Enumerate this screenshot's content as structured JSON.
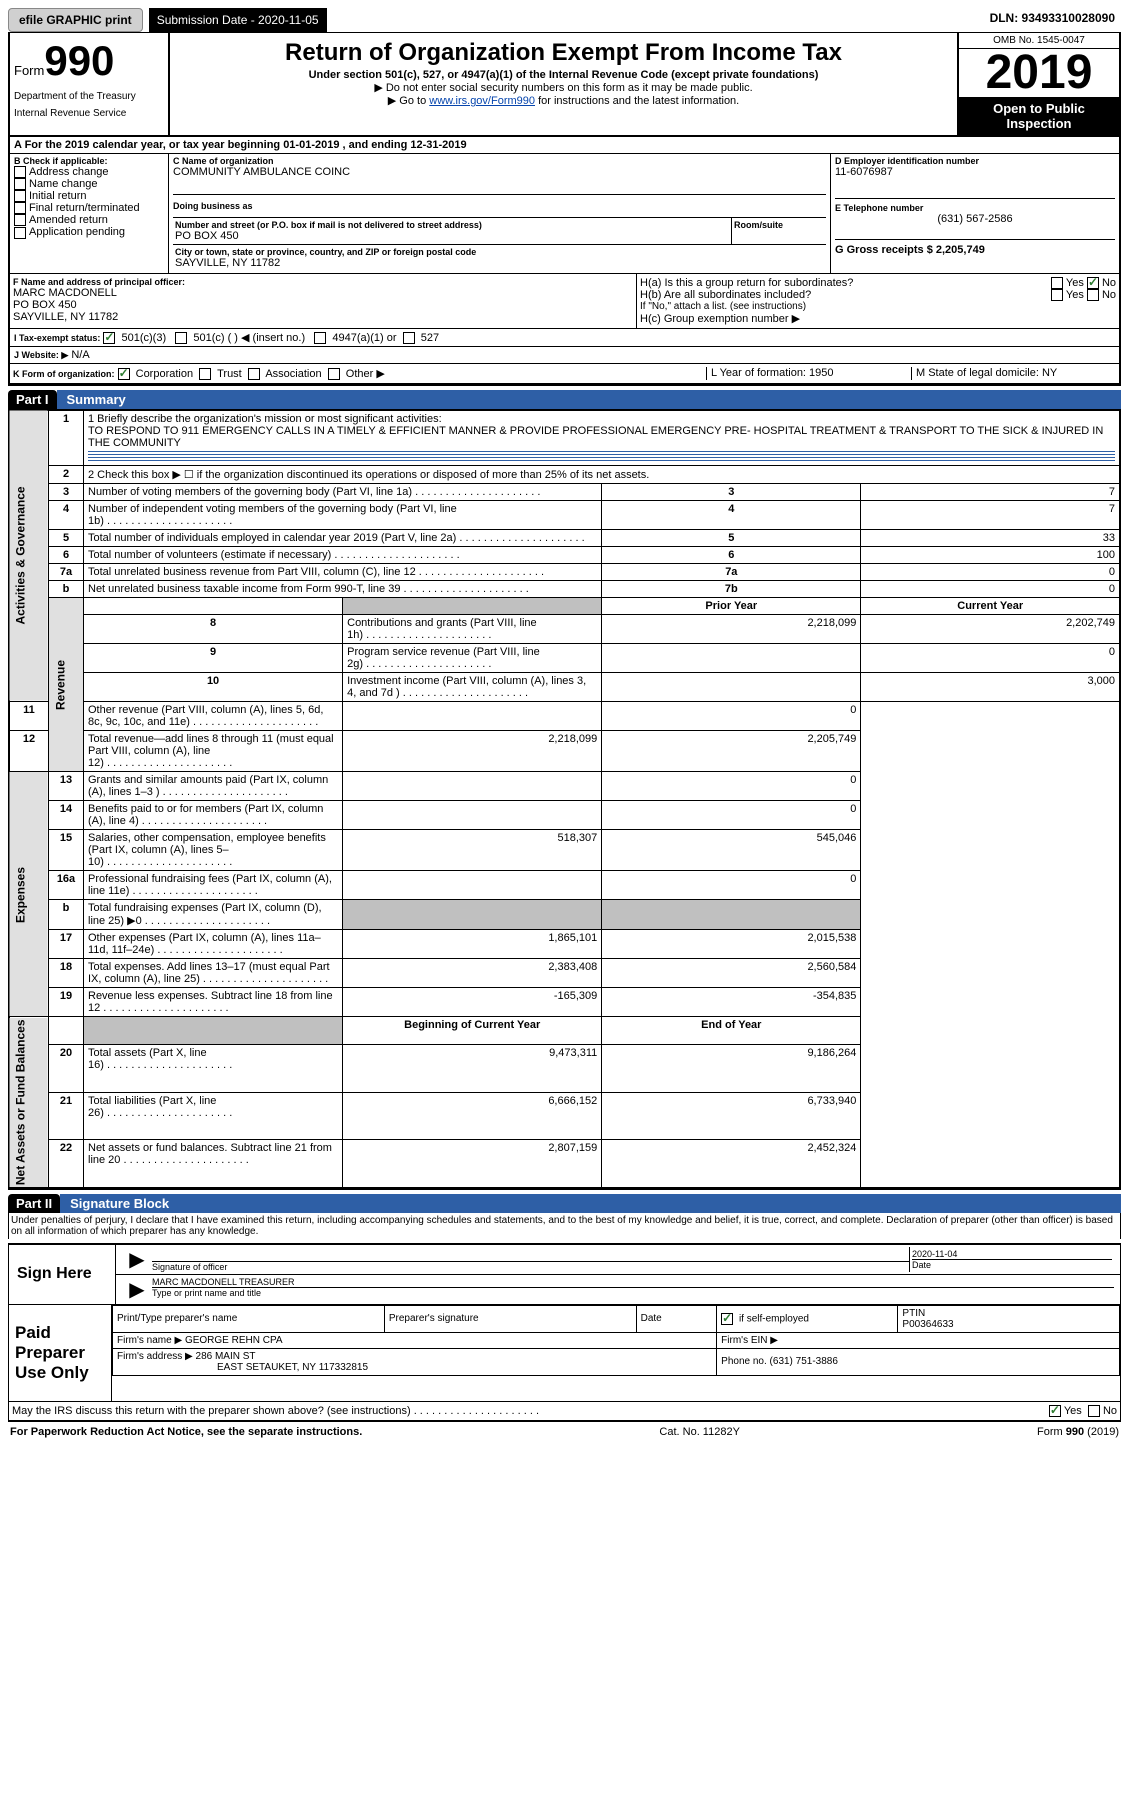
{
  "topbar": {
    "efile_btn": "efile GRAPHIC print",
    "sub_label": "Submission Date - 2020-11-05",
    "dln": "DLN: 93493310028090"
  },
  "header": {
    "form_prefix": "Form",
    "form_num": "990",
    "title": "Return of Organization Exempt From Income Tax",
    "subtitle": "Under section 501(c), 527, or 4947(a)(1) of the Internal Revenue Code (except private foundations)",
    "line1": "▶ Do not enter social security numbers on this form as it may be made public.",
    "line2_prefix": "▶ Go to ",
    "line2_link": "www.irs.gov/Form990",
    "line2_suffix": " for instructions and the latest information.",
    "dept1": "Department of the Treasury",
    "dept2": "Internal Revenue Service",
    "omb": "OMB No. 1545-0047",
    "year": "2019",
    "open_pub1": "Open to Public",
    "open_pub2": "Inspection"
  },
  "line_a": "A For the 2019 calendar year, or tax year beginning 01-01-2019    , and ending 12-31-2019",
  "box_b": {
    "heading": "B Check if applicable:",
    "items": [
      "Address change",
      "Name change",
      "Initial return",
      "Final return/terminated",
      "Amended return",
      "Application pending"
    ]
  },
  "box_c": {
    "name_lbl": "C Name of organization",
    "name_val": "COMMUNITY AMBULANCE COINC",
    "dba_lbl": "Doing business as",
    "dba_val": "",
    "addr_lbl": "Number and street (or P.O. box if mail is not delivered to street address)",
    "room_lbl": "Room/suite",
    "addr_val": "PO BOX 450",
    "city_lbl": "City or town, state or province, country, and ZIP or foreign postal code",
    "city_val": "SAYVILLE, NY  11782"
  },
  "box_d": {
    "ein_lbl": "D Employer identification number",
    "ein_val": "11-6076987",
    "phone_lbl": "E Telephone number",
    "phone_val": "(631) 567-2586",
    "gross_lbl": "G Gross receipts $ 2,205,749"
  },
  "box_f": {
    "lbl": "F  Name and address of principal officer:",
    "name": "MARC MACDONELL",
    "addr": "PO BOX 450",
    "city": "SAYVILLE, NY  11782"
  },
  "box_h": {
    "ha": "H(a)  Is this a group return for subordinates?",
    "hb": "H(b)  Are all subordinates included?",
    "hb_note": "If \"No,\" attach a list. (see instructions)",
    "hc": "H(c)  Group exemption number ▶"
  },
  "tax_exempt": {
    "lbl": "I  Tax-exempt status:",
    "opt1": "501(c)(3)",
    "opt2": "501(c) (   ) ◀ (insert no.)",
    "opt3": "4947(a)(1) or",
    "opt4": "527"
  },
  "website": {
    "lbl": "J  Website: ▶",
    "val": "N/A"
  },
  "box_k": {
    "lbl": "K Form of organization:",
    "opts": [
      "Corporation",
      "Trust",
      "Association",
      "Other ▶"
    ],
    "l_lbl": "L Year of formation: 1950",
    "m_lbl": "M State of legal domicile: NY"
  },
  "part1": {
    "tag": "Part I",
    "title": "Summary",
    "side_labels": {
      "ag": "Activities & Governance",
      "rev": "Revenue",
      "exp": "Expenses",
      "net": "Net Assets or Fund Balances"
    },
    "mission_lbl": "1  Briefly describe the organization's mission or most significant activities:",
    "mission_txt": "TO RESPOND TO 911 EMERGENCY CALLS IN A TIMELY & EFFICIENT MANNER & PROVIDE PROFESSIONAL EMERGENCY PRE- HOSPITAL TREATMENT & TRANSPORT TO THE SICK & INJURED IN THE COMMUNITY",
    "line2": "2  Check this box ▶ ☐  if the organization discontinued its operations or disposed of more than 25% of its net assets.",
    "prior_hdr": "Prior Year",
    "curr_hdr": "Current Year",
    "begin_hdr": "Beginning of Current Year",
    "end_hdr": "End of Year",
    "rows_ag": [
      {
        "n": "3",
        "txt": "Number of voting members of the governing body (Part VI, line 1a)",
        "box": "3",
        "val": "7"
      },
      {
        "n": "4",
        "txt": "Number of independent voting members of the governing body (Part VI, line 1b)",
        "box": "4",
        "val": "7"
      },
      {
        "n": "5",
        "txt": "Total number of individuals employed in calendar year 2019 (Part V, line 2a)",
        "box": "5",
        "val": "33"
      },
      {
        "n": "6",
        "txt": "Total number of volunteers (estimate if necessary)",
        "box": "6",
        "val": "100"
      },
      {
        "n": "7a",
        "txt": "Total unrelated business revenue from Part VIII, column (C), line 12",
        "box": "7a",
        "val": "0"
      },
      {
        "n": "b",
        "txt": "Net unrelated business taxable income from Form 990-T, line 39",
        "box": "7b",
        "val": "0"
      }
    ],
    "rows_rev": [
      {
        "n": "8",
        "txt": "Contributions and grants (Part VIII, line 1h)",
        "py": "2,218,099",
        "cy": "2,202,749"
      },
      {
        "n": "9",
        "txt": "Program service revenue (Part VIII, line 2g)",
        "py": "",
        "cy": "0"
      },
      {
        "n": "10",
        "txt": "Investment income (Part VIII, column (A), lines 3, 4, and 7d )",
        "py": "",
        "cy": "3,000"
      },
      {
        "n": "11",
        "txt": "Other revenue (Part VIII, column (A), lines 5, 6d, 8c, 9c, 10c, and 11e)",
        "py": "",
        "cy": "0"
      },
      {
        "n": "12",
        "txt": "Total revenue—add lines 8 through 11 (must equal Part VIII, column (A), line 12)",
        "py": "2,218,099",
        "cy": "2,205,749"
      }
    ],
    "rows_exp": [
      {
        "n": "13",
        "txt": "Grants and similar amounts paid (Part IX, column (A), lines 1–3 )",
        "py": "",
        "cy": "0"
      },
      {
        "n": "14",
        "txt": "Benefits paid to or for members (Part IX, column (A), line 4)",
        "py": "",
        "cy": "0"
      },
      {
        "n": "15",
        "txt": "Salaries, other compensation, employee benefits (Part IX, column (A), lines 5–10)",
        "py": "518,307",
        "cy": "545,046"
      },
      {
        "n": "16a",
        "txt": "Professional fundraising fees (Part IX, column (A), line 11e)",
        "py": "",
        "cy": "0"
      },
      {
        "n": "b",
        "txt": "Total fundraising expenses (Part IX, column (D), line 25) ▶0",
        "py": "SHADE",
        "cy": "SHADE"
      },
      {
        "n": "17",
        "txt": "Other expenses (Part IX, column (A), lines 11a–11d, 11f–24e)",
        "py": "1,865,101",
        "cy": "2,015,538"
      },
      {
        "n": "18",
        "txt": "Total expenses. Add lines 13–17 (must equal Part IX, column (A), line 25)",
        "py": "2,383,408",
        "cy": "2,560,584"
      },
      {
        "n": "19",
        "txt": "Revenue less expenses. Subtract line 18 from line 12",
        "py": "-165,309",
        "cy": "-354,835"
      }
    ],
    "rows_net": [
      {
        "n": "20",
        "txt": "Total assets (Part X, line 16)",
        "py": "9,473,311",
        "cy": "9,186,264"
      },
      {
        "n": "21",
        "txt": "Total liabilities (Part X, line 26)",
        "py": "6,666,152",
        "cy": "6,733,940"
      },
      {
        "n": "22",
        "txt": "Net assets or fund balances. Subtract line 21 from line 20",
        "py": "2,807,159",
        "cy": "2,452,324"
      }
    ]
  },
  "part2": {
    "tag": "Part II",
    "title": "Signature Block",
    "penalties": "Under penalties of perjury, I declare that I have examined this return, including accompanying schedules and statements, and to the best of my knowledge and belief, it is true, correct, and complete. Declaration of preparer (other than officer) is based on all information of which preparer has any knowledge.",
    "sign_here": "Sign Here",
    "sig_officer_lbl": "Signature of officer",
    "date_lbl": "Date",
    "date_val": "2020-11-04",
    "officer_name": "MARC MACDONELL TREASURER",
    "type_lbl": "Type or print name and title",
    "paid": "Paid Preparer Use Only",
    "prep_name_lbl": "Print/Type preparer's name",
    "prep_sig_lbl": "Preparer's signature",
    "prep_date_lbl": "Date",
    "check_lbl": "Check ☑ if self-employed",
    "ptin_lbl": "PTIN",
    "ptin_val": "P00364633",
    "firm_lbl": "Firm's name     ▶",
    "firm_val": "GEORGE REHN CPA",
    "firm_ein_lbl": "Firm's EIN ▶",
    "firm_addr_lbl": "Firm's address ▶",
    "firm_addr1": "286 MAIN ST",
    "firm_addr2": "EAST SETAUKET, NY  117332815",
    "firm_phone_lbl": "Phone no. (631) 751-3886",
    "discuss": "May the IRS discuss this return with the preparer shown above? (see instructions)"
  },
  "footer": {
    "notice": "For Paperwork Reduction Act Notice, see the separate instructions.",
    "cat": "Cat. No. 11282Y",
    "form": "Form 990 (2019)"
  },
  "yesno": {
    "yes": "Yes",
    "no": "No"
  }
}
